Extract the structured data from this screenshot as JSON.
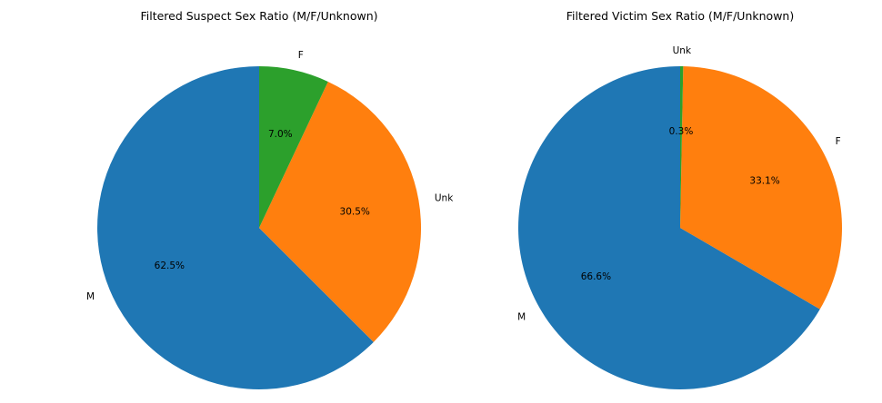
{
  "chart_data": [
    {
      "type": "pie",
      "title": "Filtered Suspect Sex Ratio (M/F/Unknown)",
      "slices": [
        {
          "label": "M",
          "value": 62.5,
          "pct_label": "62.5%",
          "color": "#1f77b4"
        },
        {
          "label": "Unk",
          "value": 30.5,
          "pct_label": "30.5%",
          "color": "#ff7f0e"
        },
        {
          "label": "F",
          "value": 7.0,
          "pct_label": "7.0%",
          "color": "#2ca02c"
        }
      ]
    },
    {
      "type": "pie",
      "title": "Filtered Victim Sex Ratio (M/F/Unknown)",
      "slices": [
        {
          "label": "M",
          "value": 66.6,
          "pct_label": "66.6%",
          "color": "#1f77b4"
        },
        {
          "label": "F",
          "value": 33.1,
          "pct_label": "33.1%",
          "color": "#ff7f0e"
        },
        {
          "label": "Unk",
          "value": 0.3,
          "pct_label": "0.3%",
          "color": "#2ca02c"
        }
      ]
    }
  ]
}
